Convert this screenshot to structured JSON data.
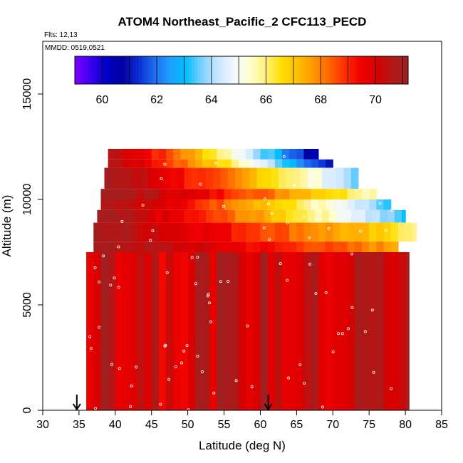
{
  "chart_data": {
    "type": "heatmap",
    "title": "ATOM4 Northeast_Pacific_2 CFC113_PECD",
    "flights_label": "Flts: 12,13",
    "mmdd_label": "MMDD: 0519,0521",
    "xlabel": "Latitude (deg N)",
    "ylabel": "Altitude (m)",
    "xlim": [
      30,
      85
    ],
    "ylim": [
      0,
      17500
    ],
    "x_ticks": [
      30,
      35,
      40,
      45,
      50,
      55,
      60,
      65,
      70,
      75,
      80,
      85
    ],
    "y_ticks": [
      0,
      5000,
      10000,
      15000
    ],
    "colorbar": {
      "range": [
        59,
        71.2
      ],
      "ticks": [
        60,
        62,
        64,
        66,
        68,
        70
      ],
      "colors": [
        "#7F00FF",
        "#3A00F0",
        "#0000C8",
        "#0000A0",
        "#0A2DD0",
        "#1E6CF0",
        "#1EA0FF",
        "#00BFFF",
        "#7FD0FF",
        "#C8E6FF",
        "#F0F6FF",
        "#FFFFD0",
        "#FFF080",
        "#FFE000",
        "#FFC000",
        "#FF9900",
        "#FF6600",
        "#FF2E00",
        "#F00000",
        "#D80000",
        "#B01818",
        "#9E2020"
      ]
    },
    "arrows_lat": [
      34.7,
      61.1
    ],
    "profiles": [
      {
        "lat": 36.0,
        "alt_min": 0,
        "alt_max": 12400
      },
      {
        "lat": 79.0,
        "alt_min": 0,
        "alt_max": 9200
      }
    ],
    "layers": [
      {
        "alt_min": 11900,
        "alt_max": 12400,
        "lat_min": 39.0,
        "lat_max": 68.0,
        "vmin": 60,
        "vmax": 70.5
      },
      {
        "alt_min": 11500,
        "alt_max": 11900,
        "lat_min": 39.0,
        "lat_max": 70.0,
        "vmin": 60.5,
        "vmax": 70.5
      },
      {
        "alt_min": 10500,
        "alt_max": 11500,
        "lat_min": 38.5,
        "lat_max": 73.5,
        "vmin": 63.5,
        "vmax": 70.8
      },
      {
        "alt_min": 10000,
        "alt_max": 10500,
        "lat_min": 38.0,
        "lat_max": 76.0,
        "vmin": 65.5,
        "vmax": 71.0
      },
      {
        "alt_min": 9500,
        "alt_max": 10000,
        "lat_min": 38.0,
        "lat_max": 78.0,
        "vmin": 63.0,
        "vmax": 70.8
      },
      {
        "alt_min": 8900,
        "alt_max": 9500,
        "lat_min": 37.5,
        "lat_max": 80.0,
        "vmin": 63.0,
        "vmax": 70.8
      },
      {
        "alt_min": 8000,
        "alt_max": 8900,
        "lat_min": 37.0,
        "lat_max": 81.5,
        "vmin": 66.0,
        "vmax": 70.8
      },
      {
        "alt_min": 7500,
        "alt_max": 8000,
        "lat_min": 37.0,
        "lat_max": 79.0,
        "vmin": 67.5,
        "vmax": 70.8
      },
      {
        "alt_min": 0,
        "alt_max": 7500,
        "lat_min": 36.0,
        "lat_max": 80.5,
        "vmin": 69.5,
        "vmax": 71.2
      }
    ]
  }
}
